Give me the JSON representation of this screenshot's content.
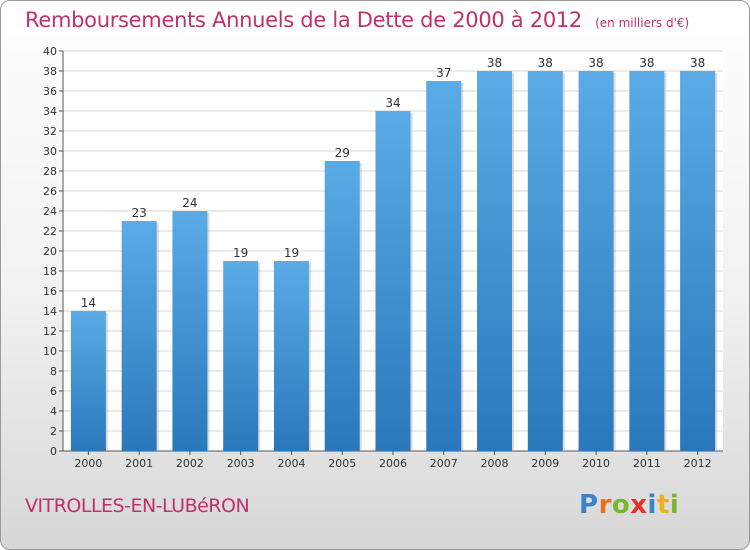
{
  "header": {
    "title": "Remboursements Annuels de la Dette de 2000 à 2012",
    "unit": "(en milliers d'€)"
  },
  "footer": {
    "commune": "VITROLLES-EN-LUBéRON",
    "logo_text": "Proxiti"
  },
  "colors": {
    "title": "#c0306b",
    "bar_light": "#5aabe6",
    "bar_dark": "#2a78bb"
  },
  "chart_data": {
    "type": "bar",
    "title": "Remboursements Annuels de la Dette de 2000 à 2012",
    "xlabel": "",
    "ylabel": "",
    "categories": [
      "2000",
      "2001",
      "2002",
      "2003",
      "2004",
      "2005",
      "2006",
      "2007",
      "2008",
      "2009",
      "2010",
      "2011",
      "2012"
    ],
    "values": [
      14,
      23,
      24,
      19,
      19,
      29,
      34,
      37,
      38,
      38,
      38,
      38,
      38
    ],
    "ylim": [
      0,
      40
    ],
    "ytick_step": 2,
    "grid": true,
    "legend": "none",
    "data_labels": true
  }
}
